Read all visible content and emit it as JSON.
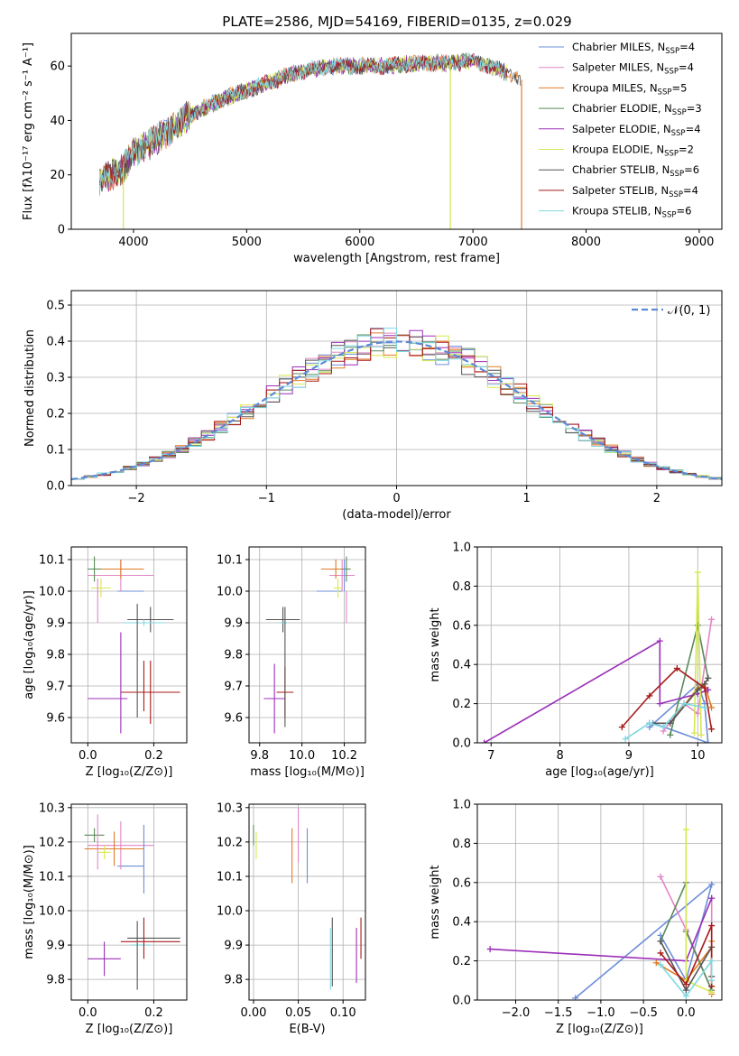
{
  "figure": {
    "title": "PLATE=2586, MJD=54169, FIBERID=0135, z=0.029"
  },
  "series": [
    {
      "name": "Chabrier MILES, N",
      "sub": "SSP",
      "tail": "=4",
      "color": "#6d8fd9"
    },
    {
      "name": "Salpeter MILES, N",
      "sub": "SSP",
      "tail": "=4",
      "color": "#e386c6"
    },
    {
      "name": "Kroupa MILES, N",
      "sub": "SSP",
      "tail": "=5",
      "color": "#e07b26"
    },
    {
      "name": "Chabrier ELODIE, N",
      "sub": "SSP",
      "tail": "=3",
      "color": "#5a8a5a"
    },
    {
      "name": "Salpeter ELODIE, N",
      "sub": "SSP",
      "tail": "=4",
      "color": "#9b2fb8"
    },
    {
      "name": "Kroupa ELODIE, N",
      "sub": "SSP",
      "tail": "=2",
      "color": "#d6e84f"
    },
    {
      "name": "Chabrier STELIB, N",
      "sub": "SSP",
      "tail": "=6",
      "color": "#555555"
    },
    {
      "name": "Salpeter STELIB, N",
      "sub": "SSP",
      "tail": "=4",
      "color": "#a81a1a"
    },
    {
      "name": "Kroupa STELIB, N",
      "sub": "SSP",
      "tail": "=6",
      "color": "#7fd8e0"
    }
  ],
  "chart_data": [
    {
      "id": "spectrum",
      "type": "line",
      "xlabel": "wavelength [Angstrom, rest frame]",
      "ylabel": "Flux [fλ10⁻¹⁷ erg cm⁻² s⁻¹ A⁻¹]",
      "xlim": [
        3450,
        9200
      ],
      "ylim": [
        0,
        72
      ],
      "xticks": [
        4000,
        5000,
        6000,
        7000,
        8000,
        9000
      ],
      "yticks": [
        0,
        20,
        40,
        60
      ],
      "continuum": {
        "x": [
          3700,
          3900,
          4000,
          4200,
          4500,
          4800,
          5000,
          5200,
          5400,
          5600,
          5800,
          6000,
          6200,
          6500,
          6800,
          7000,
          7200,
          7400,
          7420
        ],
        "y": [
          18,
          22,
          28,
          33,
          42,
          48,
          51,
          54,
          57,
          59,
          60,
          60,
          60,
          61,
          61,
          62,
          59,
          56,
          55
        ]
      },
      "spikes": [
        {
          "x": 3910,
          "y_low": 0,
          "series": 5
        },
        {
          "x": 6800,
          "y_low": 0,
          "series": 5
        },
        {
          "x": 7430,
          "y_low": 0,
          "series": 2
        }
      ]
    },
    {
      "id": "residuals",
      "type": "histogram",
      "xlabel": "(data-model)/error",
      "ylabel": "Normed distribution",
      "xlim": [
        -2.5,
        2.5
      ],
      "ylim": [
        0,
        0.54
      ],
      "xticks": [
        -2,
        -1,
        0,
        1,
        2
      ],
      "yticks": [
        0.0,
        0.1,
        0.2,
        0.3,
        0.4,
        0.5
      ],
      "legend": "𝒩(0, 1)",
      "bin_width": 0.1
    },
    {
      "id": "z_age",
      "type": "scatter",
      "xlabel": "Z [log₁₀(Z/Z⊙)]",
      "ylabel": "age  [log₁₀(age/yr)]",
      "xlim": [
        -0.05,
        0.3
      ],
      "ylim": [
        9.52,
        10.14
      ],
      "xticks": [
        0.0,
        0.2
      ],
      "yticks": [
        9.6,
        9.7,
        9.8,
        9.9,
        10.0,
        10.1
      ],
      "points": [
        {
          "s": 0,
          "x": 0.13,
          "y": 10.0,
          "xe": 0.04,
          "ye": 0.0
        },
        {
          "s": 1,
          "x": 0.1,
          "y": 10.05,
          "xe": 0.1,
          "ye": 0.05
        },
        {
          "s": 2,
          "x": 0.1,
          "y": 10.07,
          "xe": 0.07,
          "ye": 0.03
        },
        {
          "s": 3,
          "x": 0.02,
          "y": 10.07,
          "xe": 0.02,
          "ye": 0.04
        },
        {
          "s": 4,
          "x": 0.06,
          "y": 9.66,
          "xe": 0.06,
          "ye": 0.0
        },
        {
          "s": 5,
          "x": 0.04,
          "y": 10.01,
          "xe": 0.03,
          "ye": 0.03
        },
        {
          "s": 6,
          "x": 0.19,
          "y": 9.91,
          "xe": 0.07,
          "ye": 0.04
        },
        {
          "s": 7,
          "x": 0.19,
          "y": 9.68,
          "xe": 0.09,
          "ye": 0.1
        },
        {
          "s": 8,
          "x": 0.17,
          "y": 9.9,
          "xe": 0.06,
          "ye": 0.01
        },
        {
          "s": 4,
          "x": 0.1,
          "y": 9.71,
          "xe": 0.0,
          "ye": 0.16
        },
        {
          "s": 6,
          "x": 0.15,
          "y": 9.78,
          "xe": 0.0,
          "ye": 0.18
        },
        {
          "s": 7,
          "x": 0.17,
          "y": 9.7,
          "xe": 0.0,
          "ye": 0.08
        },
        {
          "s": 1,
          "x": 0.03,
          "y": 9.97,
          "xe": 0.0,
          "ye": 0.07
        }
      ]
    },
    {
      "id": "mass_age",
      "type": "scatter",
      "xlabel": "mass [log₁₀(M/M⊙)]",
      "ylabel": "",
      "xlim": [
        9.75,
        10.3
      ],
      "ylim": [
        9.52,
        10.14
      ],
      "xticks": [
        9.8,
        10.0,
        10.2
      ],
      "yticks": [
        9.6,
        9.7,
        9.8,
        9.9,
        10.0,
        10.1
      ],
      "points": [
        {
          "s": 0,
          "x": 10.13,
          "y": 10.0,
          "xe": 0.06,
          "ye": 0.0
        },
        {
          "s": 1,
          "x": 10.19,
          "y": 10.05,
          "xe": 0.06,
          "ye": 0.05
        },
        {
          "s": 2,
          "x": 10.16,
          "y": 10.07,
          "xe": 0.07,
          "ye": 0.03
        },
        {
          "s": 3,
          "x": 10.21,
          "y": 10.07,
          "xe": 0.02,
          "ye": 0.04
        },
        {
          "s": 4,
          "x": 9.87,
          "y": 9.66,
          "xe": 0.05,
          "ye": 0.11
        },
        {
          "s": 5,
          "x": 10.17,
          "y": 10.01,
          "xe": 0.02,
          "ye": 0.03
        },
        {
          "s": 6,
          "x": 9.91,
          "y": 9.91,
          "xe": 0.08,
          "ye": 0.04
        },
        {
          "s": 7,
          "x": 9.92,
          "y": 9.68,
          "xe": 0.04,
          "ye": 0.08
        },
        {
          "s": 8,
          "x": 9.91,
          "y": 9.9,
          "xe": 0.02,
          "ye": 0.0
        },
        {
          "s": 6,
          "x": 9.92,
          "y": 9.76,
          "xe": 0.0,
          "ye": 0.19
        },
        {
          "s": 0,
          "x": 10.2,
          "y": 10.05,
          "xe": 0.0,
          "ye": 0.05
        },
        {
          "s": 1,
          "x": 10.21,
          "y": 9.95,
          "xe": 0.0,
          "ye": 0.05
        }
      ]
    },
    {
      "id": "age_weight",
      "type": "line",
      "xlabel": "age  [log₁₀(age/yr)]",
      "ylabel": "mass weight",
      "xlim": [
        6.8,
        10.35
      ],
      "ylim": [
        0,
        1.0
      ],
      "xticks": [
        7,
        8,
        9,
        10
      ],
      "yticks": [
        0.0,
        0.2,
        0.4,
        0.6,
        0.8,
        1.0
      ],
      "lines": [
        {
          "s": 0,
          "x": [
            9.3,
            10.0,
            10.1,
            10.15,
            9.35
          ],
          "y": [
            0.08,
            0.3,
            0.2,
            0.0,
            0.1
          ]
        },
        {
          "s": 1,
          "x": [
            9.5,
            9.8,
            10.0,
            10.2
          ],
          "y": [
            0.06,
            0.2,
            0.15,
            0.63
          ]
        },
        {
          "s": 2,
          "x": [
            9.6,
            10.0,
            10.1,
            10.2
          ],
          "y": [
            0.1,
            0.28,
            0.3,
            0.18
          ]
        },
        {
          "s": 3,
          "x": [
            9.6,
            10.0,
            10.15
          ],
          "y": [
            0.04,
            0.6,
            0.33
          ]
        },
        {
          "s": 4,
          "x": [
            6.9,
            9.45,
            9.45,
            10.0,
            10.15
          ],
          "y": [
            0.0,
            0.52,
            0.2,
            0.25,
            0.27
          ]
        },
        {
          "s": 5,
          "x": [
            9.95,
            10.0,
            10.05
          ],
          "y": [
            0.05,
            0.87,
            0.04
          ]
        },
        {
          "s": 6,
          "x": [
            9.3,
            9.6,
            10.0,
            10.1,
            10.15
          ],
          "y": [
            0.1,
            0.1,
            0.27,
            0.3,
            0.33
          ]
        },
        {
          "s": 7,
          "x": [
            8.9,
            9.3,
            9.7,
            10.1,
            10.2
          ],
          "y": [
            0.08,
            0.24,
            0.38,
            0.28,
            0.07
          ]
        },
        {
          "s": 8,
          "x": [
            8.95,
            9.3,
            9.5,
            9.8,
            10.1
          ],
          "y": [
            0.02,
            0.1,
            0.08,
            0.2,
            0.18
          ]
        }
      ]
    },
    {
      "id": "z_mass",
      "type": "scatter",
      "xlabel": "Z [log₁₀(Z/Z⊙)]",
      "ylabel": "mass [log₁₀(M/M⊙)]",
      "xlim": [
        -0.05,
        0.3
      ],
      "ylim": [
        9.74,
        10.31
      ],
      "xticks": [
        0.0,
        0.2
      ],
      "yticks": [
        9.8,
        9.9,
        10.0,
        10.1,
        10.2,
        10.3
      ],
      "points": [
        {
          "s": 0,
          "x": 0.13,
          "y": 10.13,
          "xe": 0.04,
          "ye": 0.0
        },
        {
          "s": 1,
          "x": 0.1,
          "y": 10.19,
          "xe": 0.1,
          "ye": 0.07
        },
        {
          "s": 2,
          "x": 0.08,
          "y": 10.18,
          "xe": 0.09,
          "ye": 0.05
        },
        {
          "s": 3,
          "x": 0.02,
          "y": 10.22,
          "xe": 0.03,
          "ye": 0.02
        },
        {
          "s": 4,
          "x": 0.05,
          "y": 9.86,
          "xe": 0.05,
          "ye": 0.05
        },
        {
          "s": 5,
          "x": 0.05,
          "y": 10.17,
          "xe": 0.02,
          "ye": 0.02
        },
        {
          "s": 6,
          "x": 0.2,
          "y": 9.92,
          "xe": 0.08,
          "ye": 0.0
        },
        {
          "s": 7,
          "x": 0.19,
          "y": 9.91,
          "xe": 0.09,
          "ye": 0.0
        },
        {
          "s": 8,
          "x": 0.16,
          "y": 9.9,
          "xe": 0.03,
          "ye": 0.0
        },
        {
          "s": 6,
          "x": 0.15,
          "y": 9.87,
          "xe": 0.0,
          "ye": 0.1
        },
        {
          "s": 7,
          "x": 0.17,
          "y": 9.92,
          "xe": 0.0,
          "ye": 0.06
        },
        {
          "s": 1,
          "x": 0.03,
          "y": 10.2,
          "xe": 0.0,
          "ye": 0.08
        },
        {
          "s": 0,
          "x": 0.17,
          "y": 10.15,
          "xe": 0.0,
          "ye": 0.1
        }
      ]
    },
    {
      "id": "ebv_mass",
      "type": "scatter",
      "xlabel": "E(B-V)",
      "ylabel": "",
      "xlim": [
        -0.005,
        0.125
      ],
      "ylim": [
        9.74,
        10.31
      ],
      "xticks": [
        0.0,
        0.05,
        0.1
      ],
      "yticks": [
        9.8,
        9.9,
        10.0,
        10.1,
        10.2,
        10.3
      ],
      "points": [
        {
          "s": 0,
          "x": 0.06,
          "y": 10.16,
          "xe": 0.0,
          "ye": 0.08
        },
        {
          "s": 1,
          "x": 0.05,
          "y": 10.22,
          "xe": 0.0,
          "ye": 0.08
        },
        {
          "s": 2,
          "x": 0.043,
          "y": 10.16,
          "xe": 0.0,
          "ye": 0.08
        },
        {
          "s": 3,
          "x": 0.0,
          "y": 10.22,
          "xe": 0.0,
          "ye": 0.03
        },
        {
          "s": 4,
          "x": 0.115,
          "y": 9.87,
          "xe": 0.0,
          "ye": 0.08
        },
        {
          "s": 5,
          "x": 0.003,
          "y": 10.19,
          "xe": 0.0,
          "ye": 0.04
        },
        {
          "s": 6,
          "x": 0.088,
          "y": 9.88,
          "xe": 0.0,
          "ye": 0.1
        },
        {
          "s": 7,
          "x": 0.12,
          "y": 9.92,
          "xe": 0.0,
          "ye": 0.06
        },
        {
          "s": 8,
          "x": 0.086,
          "y": 9.86,
          "xe": 0.0,
          "ye": 0.09
        }
      ]
    },
    {
      "id": "z_weight",
      "type": "line",
      "xlabel": "Z [log₁₀(Z/Z⊙)]",
      "ylabel": "mass weight",
      "xlim": [
        -2.45,
        0.42
      ],
      "ylim": [
        0,
        1.0
      ],
      "xticks": [
        -2.0,
        -1.5,
        -1.0,
        -0.5,
        0.0
      ],
      "yticks": [
        0.0,
        0.2,
        0.4,
        0.6,
        0.8,
        1.0
      ],
      "lines": [
        {
          "s": 0,
          "x": [
            -1.3,
            0.3,
            0.0,
            -0.3
          ],
          "y": [
            0.01,
            0.59,
            0.1,
            0.33
          ]
        },
        {
          "s": 1,
          "x": [
            -0.3,
            0.0,
            0.3,
            0.3
          ],
          "y": [
            0.63,
            0.36,
            0.05,
            0.52
          ]
        },
        {
          "s": 2,
          "x": [
            -0.35,
            0.0,
            0.3,
            0.3,
            0.3
          ],
          "y": [
            0.19,
            0.1,
            0.27,
            0.03,
            0.3
          ]
        },
        {
          "s": 3,
          "x": [
            -0.3,
            0.0,
            0.0,
            0.3
          ],
          "y": [
            0.3,
            0.6,
            0.35,
            0.05
          ]
        },
        {
          "s": 4,
          "x": [
            -2.3,
            0.0,
            0.3
          ],
          "y": [
            0.26,
            0.2,
            0.52
          ]
        },
        {
          "s": 5,
          "x": [
            0.0,
            0.0,
            0.3
          ],
          "y": [
            0.87,
            0.1,
            0.04
          ]
        },
        {
          "s": 6,
          "x": [
            -0.3,
            0.0,
            0.3,
            0.3
          ],
          "y": [
            0.3,
            0.05,
            0.27,
            0.12
          ]
        },
        {
          "s": 7,
          "x": [
            -0.3,
            0.0,
            0.3,
            0.3
          ],
          "y": [
            0.24,
            0.08,
            0.38,
            0.07
          ]
        },
        {
          "s": 8,
          "x": [
            -0.3,
            0.0,
            0.3,
            0.3
          ],
          "y": [
            0.18,
            0.02,
            0.2,
            0.1
          ]
        }
      ]
    }
  ]
}
